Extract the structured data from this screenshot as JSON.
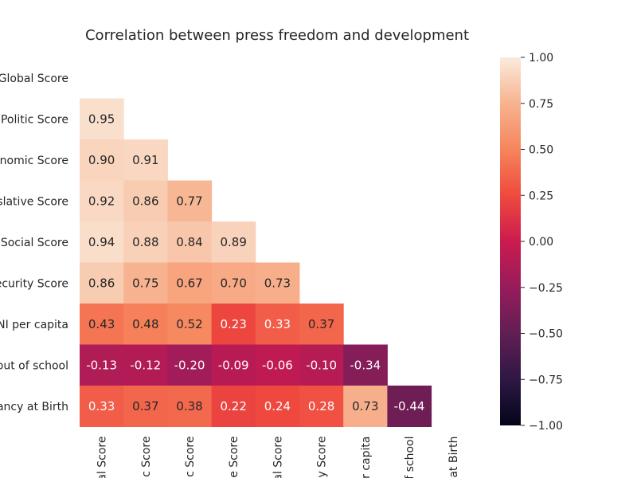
{
  "chart_data": {
    "type": "heatmap",
    "title": "Correlation between press freedom and development",
    "row_labels": [
      "Global Score",
      "Politic Score",
      "onomic Score",
      "slative Score",
      "Social Score",
      "ecurity Score",
      "NI per capita",
      "out of school",
      "tancy at Birth"
    ],
    "col_labels": [
      "al Score",
      "c Score",
      "c Score",
      "e Score",
      "al Score",
      "y Score",
      "er capita",
      "f school",
      "at Birth"
    ],
    "mask": "upper-triangle-including-diagonal",
    "values": [
      [
        null,
        null,
        null,
        null,
        null,
        null,
        null,
        null,
        null
      ],
      [
        0.95,
        null,
        null,
        null,
        null,
        null,
        null,
        null,
        null
      ],
      [
        0.9,
        0.91,
        null,
        null,
        null,
        null,
        null,
        null,
        null
      ],
      [
        0.92,
        0.86,
        0.77,
        null,
        null,
        null,
        null,
        null,
        null
      ],
      [
        0.94,
        0.88,
        0.84,
        0.89,
        null,
        null,
        null,
        null,
        null
      ],
      [
        0.86,
        0.75,
        0.67,
        0.7,
        0.73,
        null,
        null,
        null,
        null
      ],
      [
        0.43,
        0.48,
        0.52,
        0.23,
        0.33,
        0.37,
        null,
        null,
        null
      ],
      [
        -0.13,
        -0.12,
        -0.2,
        -0.09,
        -0.06,
        -0.1,
        -0.34,
        null,
        null
      ],
      [
        0.33,
        0.37,
        0.38,
        0.22,
        0.24,
        0.28,
        0.73,
        -0.44,
        null
      ]
    ],
    "value_format": "0.00",
    "vmin": -1.0,
    "vmax": 1.0,
    "colormap": "rocket",
    "colorbar": {
      "ticks": [
        1.0,
        0.75,
        0.5,
        0.25,
        0.0,
        -0.25,
        -0.5,
        -0.75,
        -1.0
      ],
      "tick_labels": [
        "1.00",
        "0.75",
        "0.50",
        "0.25",
        "0.00",
        "−0.25",
        "−0.50",
        "−0.75",
        "−1.00"
      ]
    },
    "grid": false
  }
}
